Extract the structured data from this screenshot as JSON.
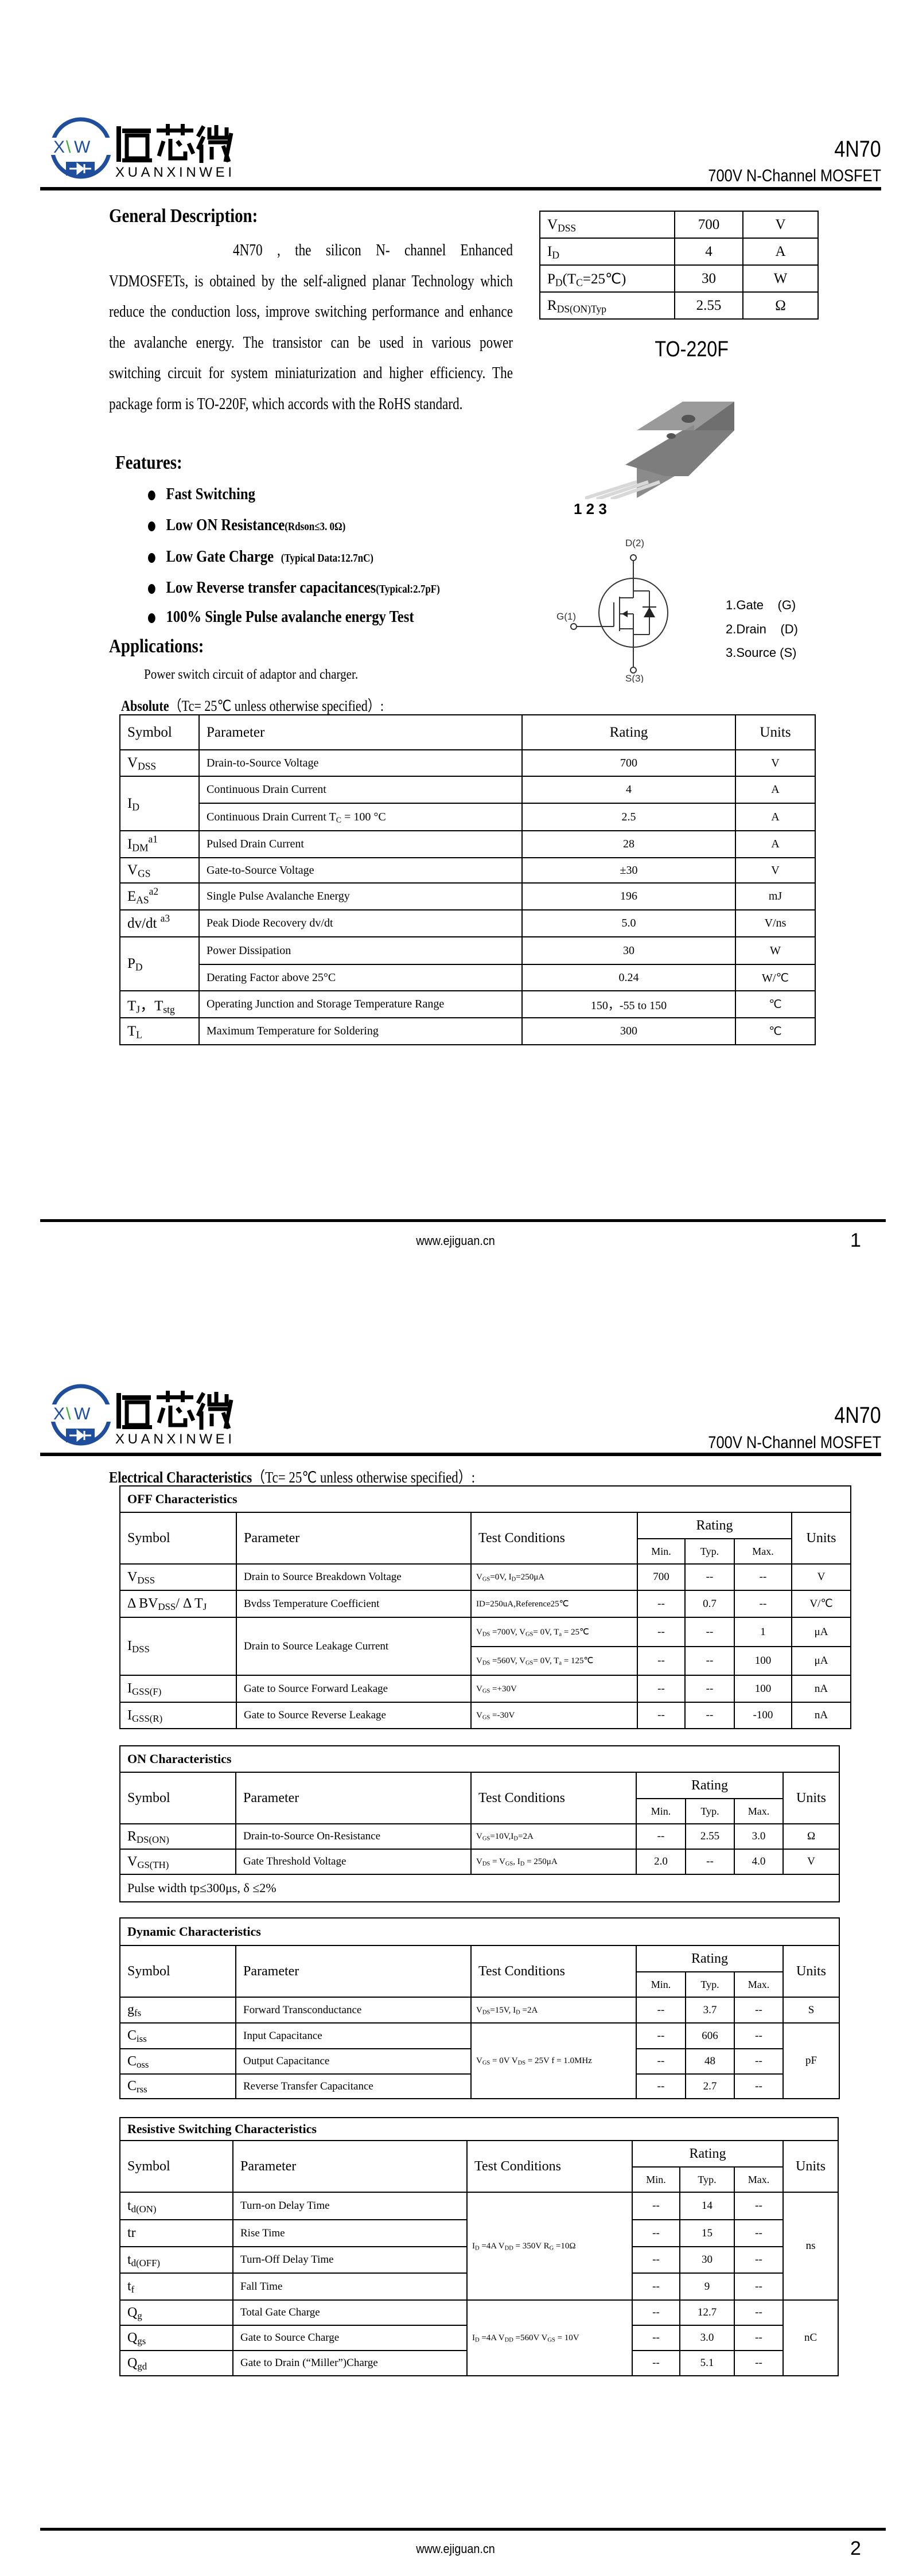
{
  "brand": {
    "logo_mark": "XW",
    "logo_cn": "恒芯微",
    "logo_en": "XUANXINWEI",
    "blue": "#1f4e9c",
    "green": "#3aa935"
  },
  "header": {
    "part_number": "4N70",
    "subtitle": "700V N-Channel MOSFET"
  },
  "page1": {
    "general_title": "General Description:",
    "description": "4N70 , the silicon N- channel Enhanced VDMOSFETs, is obtained by the self-aligned planar Technology which reduce the conduction loss, improve switching performance and enhance the avalanche energy. The transistor can be used in various power switching circuit for system miniaturization and higher efficiency. The package form is TO-220F, which accords with the RoHS standard.",
    "summary_table": [
      [
        [
          "V",
          {
            "sub": "DSS"
          }
        ],
        "700",
        "V"
      ],
      [
        [
          "I",
          {
            "sub": "D"
          }
        ],
        "4",
        "A"
      ],
      [
        [
          "P",
          {
            "sub": "D"
          },
          "(T",
          {
            "sub": "C"
          },
          "=25℃)"
        ],
        "30",
        "W"
      ],
      [
        [
          "R",
          {
            "sub": "DS(ON)Typ"
          }
        ],
        "2.55",
        "Ω"
      ]
    ],
    "package_name": "TO-220F",
    "pin_numbers": "1 2 3",
    "symbol_labels": {
      "drain": "D(2)",
      "gate": "G(1)",
      "source": "S(3)"
    },
    "pins": [
      "1.Gate    (G)",
      "2.Drain    (D)",
      "3.Source (S)"
    ],
    "features_title": "Features:",
    "features": [
      {
        "text": "Fast Switching",
        "note": ""
      },
      {
        "text": "Low ON Resistance",
        "note": "(Rdson≤3. 0Ω)"
      },
      {
        "text": "Low Gate Charge",
        "note": "   (Typical Data:12.7nC)"
      },
      {
        "text": "Low Reverse transfer capacitances",
        "note": "(Typical:2.7pF)"
      },
      {
        "text": "100% Single Pulse avalanche energy Test",
        "note": ""
      }
    ],
    "applications_title": "Applications:",
    "applications": "Power switch circuit of adaptor and charger.",
    "absolute_title": "Absolute",
    "absolute_condition": "（Tc= 25℃  unless otherwise specified）:",
    "absolute_headers": [
      "Symbol",
      "Parameter",
      "Rating",
      "Units"
    ],
    "absolute_rows": [
      [
        {
          "t": [
            "V",
            {
              "sub": "DSS"
            }
          ]
        },
        "Drain-to-Source Voltage",
        "700",
        "V"
      ],
      [
        {
          "t": [
            "I",
            {
              "sub": "D"
            }
          ],
          "rs": 2
        },
        "Continuous Drain Current",
        "4",
        "A"
      ],
      [
        [
          "Continuous Drain Current T",
          {
            "sub": "C"
          },
          " = 100 °C"
        ],
        "2.5",
        "A"
      ],
      [
        {
          "t": [
            "I",
            {
              "sub": "DM"
            },
            {
              "sup": "a1"
            }
          ]
        },
        "Pulsed Drain Current",
        "28",
        "A"
      ],
      [
        {
          "t": [
            "V",
            {
              "sub": "GS"
            }
          ]
        },
        "Gate-to-Source Voltage",
        "±30",
        "V"
      ],
      [
        {
          "t": [
            "E",
            {
              "sub": "AS"
            },
            {
              "sup": "a2"
            }
          ]
        },
        "Single Pulse Avalanche Energy",
        "196",
        "mJ"
      ],
      [
        {
          "t": [
            "dv/dt ",
            {
              "sup": "a3"
            }
          ]
        },
        "Peak Diode Recovery dv/dt",
        "5.0",
        "V/ns"
      ],
      [
        {
          "t": [
            "P",
            {
              "sub": "D"
            }
          ],
          "rs": 2
        },
        "Power Dissipation",
        "30",
        "W"
      ],
      [
        "Derating Factor above 25°C",
        "0.24",
        "W/℃"
      ],
      [
        {
          "t": [
            "T",
            {
              "sub": "J"
            },
            "，T",
            {
              "sub": "stg"
            }
          ]
        },
        "Operating Junction and Storage Temperature Range",
        "150，-55 to 150",
        "℃"
      ],
      [
        {
          "t": [
            "T",
            {
              "sub": "L"
            }
          ]
        },
        "Maximum Temperature for Soldering",
        "300",
        "℃"
      ]
    ],
    "footer_url": "www.ejiguan.cn",
    "page_number": "1"
  },
  "page2": {
    "elec_title": "Electrical Characteristics",
    "elec_condition": "（Tc= 25℃  unless otherwise specified）:",
    "col_headers": {
      "symbol": "Symbol",
      "parameter": "Parameter",
      "test": "Test Conditions",
      "rating": "Rating",
      "units": "Units",
      "min": "Min.",
      "typ": "Typ.",
      "max": "Max."
    },
    "tables": [
      {
        "title": "OFF Characteristics",
        "rows": [
          [
            {
              "t": [
                "V",
                {
                  "sub": "DSS"
                }
              ]
            },
            "Drain to Source Breakdown Voltage",
            [
              "V",
              {
                "sub": "GS"
              },
              "=0V, I",
              {
                "sub": "D"
              },
              "=250μA"
            ],
            "700",
            "--",
            "--",
            "V"
          ],
          [
            {
              "t": [
                "Δ BV",
                {
                  "sub": "DSS"
                },
                "/ Δ T",
                {
                  "sub": "J"
                }
              ]
            },
            "Bvdss Temperature Coefficient",
            "ID=250uA,Reference25℃",
            "--",
            "0.7",
            "--",
            "V/℃"
          ],
          [
            {
              "t": [
                "I",
                {
                  "sub": "DSS"
                }
              ],
              "rs": 2
            },
            {
              "t": "Drain to Source Leakage Current",
              "rs": 2
            },
            [
              "V",
              {
                "sub": "DS"
              },
              " =700V, V",
              {
                "sub": "GS"
              },
              "= 0V, T",
              {
                "sub": "a"
              },
              " = 25℃"
            ],
            "--",
            "--",
            "1",
            "μA"
          ],
          [
            [
              "V",
              {
                "sub": "DS"
              },
              " =560V, V",
              {
                "sub": "GS"
              },
              "= 0V, T",
              {
                "sub": "a"
              },
              " = 125℃"
            ],
            "--",
            "--",
            "100",
            "μA"
          ],
          [
            {
              "t": [
                "I",
                {
                  "sub": "GSS(F)"
                }
              ]
            },
            "Gate to Source Forward Leakage",
            [
              "V",
              {
                "sub": "GS"
              },
              " =+30V"
            ],
            "--",
            "--",
            "100",
            "nA"
          ],
          [
            {
              "t": [
                "I",
                {
                  "sub": "GSS(R)"
                }
              ]
            },
            "Gate to Source Reverse Leakage",
            [
              "V",
              {
                "sub": "GS"
              },
              " =-30V"
            ],
            "--",
            "--",
            "-100",
            "nA"
          ]
        ]
      },
      {
        "title": "ON Characteristics",
        "rows": [
          [
            {
              "t": [
                "R",
                {
                  "sub": "DS(ON)"
                }
              ]
            },
            "Drain-to-Source On-Resistance",
            [
              "V",
              {
                "sub": "GS"
              },
              "=10V,I",
              {
                "sub": "D"
              },
              "=2A"
            ],
            "--",
            "2.55",
            "3.0",
            "Ω"
          ],
          [
            {
              "t": [
                "V",
                {
                  "sub": "GS(TH)"
                }
              ]
            },
            "Gate Threshold Voltage",
            [
              "V",
              {
                "sub": "DS"
              },
              " = V",
              {
                "sub": "GS"
              },
              ", I",
              {
                "sub": "D"
              },
              " = 250μA"
            ],
            "2.0",
            "--",
            "4.0",
            "V"
          ]
        ],
        "note": "Pulse width tp≤300μs, δ ≤2%"
      },
      {
        "title": "Dynamic Characteristics",
        "rows": [
          [
            {
              "t": [
                "g",
                {
                  "sub": "fs"
                }
              ]
            },
            "Forward Transconductance",
            [
              "V",
              {
                "sub": "DS"
              },
              "=15V, I",
              {
                "sub": "D"
              },
              " =2A"
            ],
            "--",
            "3.7",
            "--",
            "S"
          ],
          [
            {
              "t": [
                "C",
                {
                  "sub": "iss"
                }
              ]
            },
            "Input Capacitance",
            {
              "t": [
                "V",
                {
                  "sub": "GS"
                },
                " = 0V V",
                {
                  "sub": "DS"
                },
                " = 25V f = 1.0MHz"
              ],
              "rs": 3
            },
            "--",
            "606",
            "--",
            {
              "t": "pF",
              "rs": 3
            }
          ],
          [
            {
              "t": [
                "C",
                {
                  "sub": "oss"
                }
              ]
            },
            "Output Capacitance",
            "--",
            "48",
            "--"
          ],
          [
            {
              "t": [
                "C",
                {
                  "sub": "rss"
                }
              ]
            },
            "Reverse Transfer Capacitance",
            "--",
            "2.7",
            "--"
          ]
        ]
      },
      {
        "title": "Resistive Switching Characteristics",
        "rows": [
          [
            {
              "t": [
                "t",
                {
                  "sub": "d(ON)"
                }
              ]
            },
            "Turn-on Delay Time",
            {
              "t": [
                "I",
                {
                  "sub": "D"
                },
                " =4A    V",
                {
                  "sub": "DD"
                },
                " = 350V R",
                {
                  "sub": "G"
                },
                " =10Ω"
              ],
              "rs": 4
            },
            "--",
            "14",
            "--",
            {
              "t": "ns",
              "rs": 4
            }
          ],
          [
            {
              "t": [
                "tr"
              ]
            },
            "Rise Time",
            "--",
            "15",
            "--"
          ],
          [
            {
              "t": [
                "t",
                {
                  "sub": "d(OFF)"
                }
              ]
            },
            "Turn-Off Delay Time",
            "--",
            "30",
            "--"
          ],
          [
            {
              "t": [
                "t",
                {
                  "sub": "f"
                }
              ]
            },
            "Fall Time",
            "--",
            "9",
            "--"
          ],
          [
            {
              "t": [
                "Q",
                {
                  "sub": "g"
                }
              ]
            },
            "Total Gate Charge",
            {
              "t": [
                "I",
                {
                  "sub": "D"
                },
                " =4A    V",
                {
                  "sub": "DD"
                },
                " =560V V",
                {
                  "sub": "GS"
                },
                " = 10V"
              ],
              "rs": 3
            },
            "--",
            "12.7",
            "--",
            {
              "t": "nC",
              "rs": 3
            }
          ],
          [
            {
              "t": [
                "Q",
                {
                  "sub": "gs"
                }
              ]
            },
            "Gate to Source Charge",
            "--",
            "3.0",
            "--"
          ],
          [
            {
              "t": [
                "Q",
                {
                  "sub": "gd"
                }
              ]
            },
            "Gate to Drain (“Miller”)Charge",
            "--",
            "5.1",
            "--"
          ]
        ]
      }
    ],
    "footer_url": "www.ejiguan.cn",
    "page_number": "2"
  }
}
